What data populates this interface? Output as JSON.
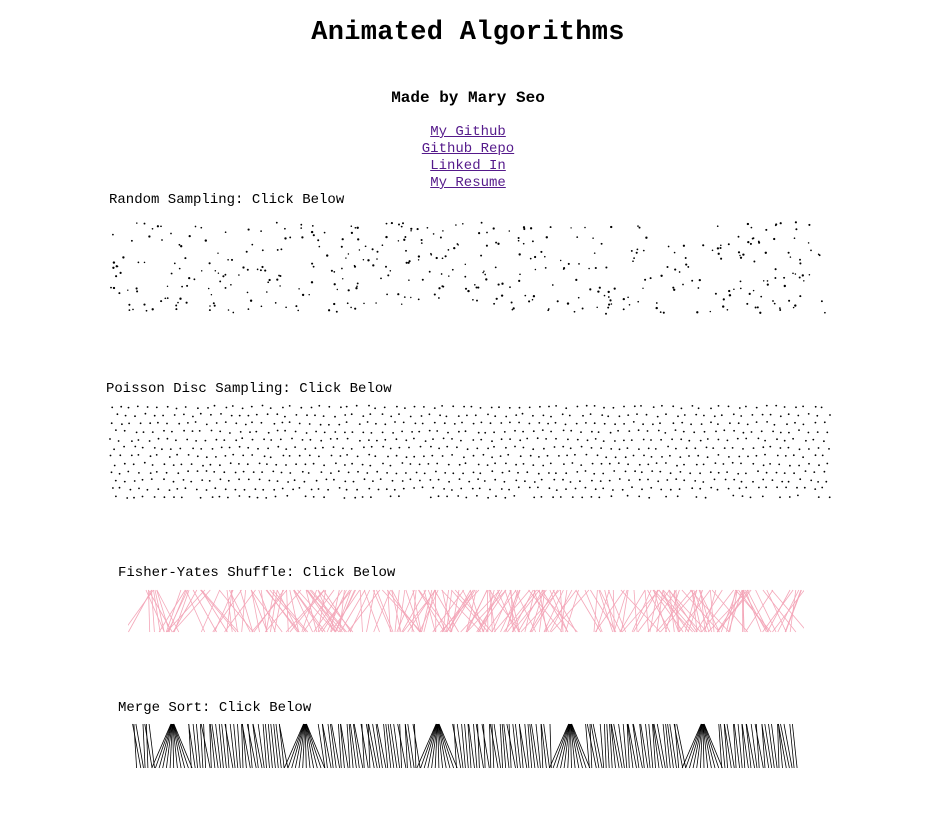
{
  "header": {
    "title": "Animated Algorithms",
    "author": "Made by Mary Seo"
  },
  "links": [
    {
      "label": "My Github"
    },
    {
      "label": "Github Repo"
    },
    {
      "label": "Linked In"
    },
    {
      "label": "My Resume"
    }
  ],
  "sections": {
    "random_sampling": {
      "label": "Random Sampling: Click Below",
      "dot_color": "#000000"
    },
    "poisson_disc": {
      "label": "Poisson Disc Sampling: Click Below",
      "dot_color": "#000000"
    },
    "fisher_yates": {
      "label": "Fisher-Yates Shuffle: Click Below",
      "line_color": "#f4a7b9"
    },
    "merge_sort": {
      "label": "Merge Sort: Click Below",
      "line_color": "#000000"
    }
  },
  "colors": {
    "link": "#551a8b",
    "background": "#ffffff"
  }
}
